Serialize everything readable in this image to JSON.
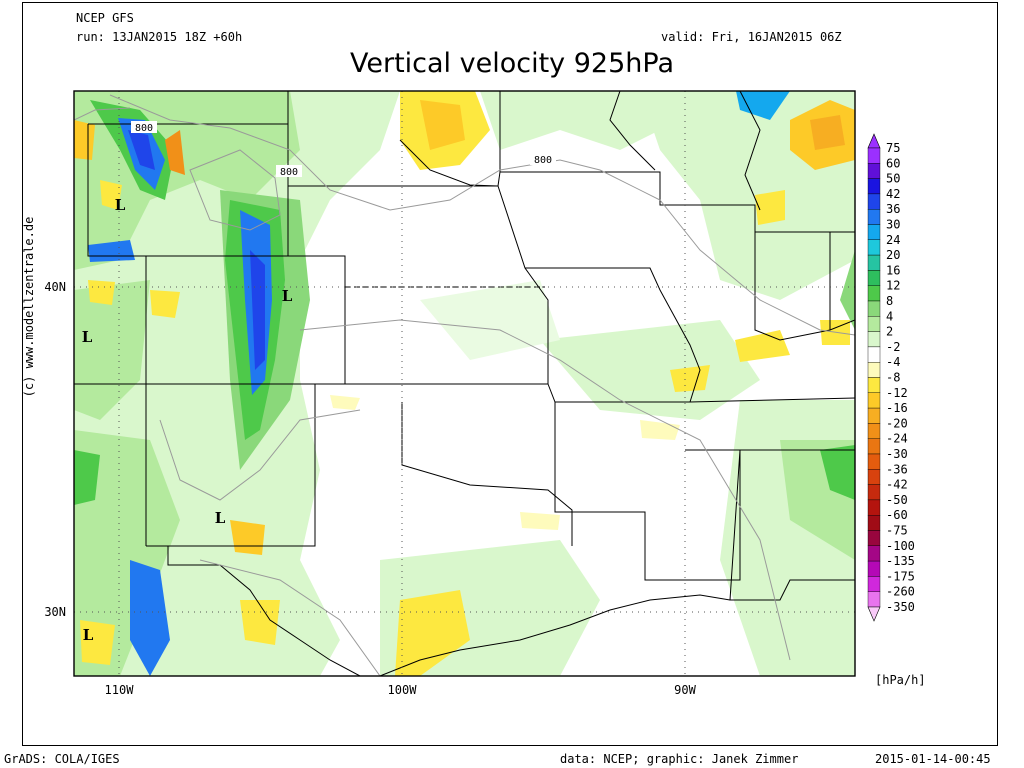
{
  "header": {
    "source": "NCEP GFS",
    "run": "run: 13JAN2015 18Z +60h",
    "valid": "valid: Fri, 16JAN2015 06Z",
    "title": "Vertical velocity 925hPa"
  },
  "credit": "(c) www.modellzentrale.de",
  "footer": {
    "left": "GrADS: COLA/IGES",
    "center": "data: NCEP; graphic: Janek Zimmer",
    "right": "2015-01-14-00:45"
  },
  "axes": {
    "lat_labels": [
      "40N",
      "30N"
    ],
    "lon_labels": [
      "110W",
      "100W",
      "90W"
    ]
  },
  "contours": {
    "label_a": "800",
    "label_b": "800",
    "label_c": "800"
  },
  "low_markers": [
    "L",
    "L",
    "L",
    "L",
    "L"
  ],
  "legend": {
    "unit": "[hPa/h]",
    "levels": [
      "75",
      "60",
      "50",
      "42",
      "36",
      "30",
      "24",
      "20",
      "16",
      "12",
      "8",
      "4",
      "2",
      "-2",
      "-4",
      "-8",
      "-12",
      "-16",
      "-20",
      "-24",
      "-30",
      "-36",
      "-42",
      "-50",
      "-60",
      "-75",
      "-100",
      "-135",
      "-175",
      "-260",
      "-350"
    ],
    "colors": [
      "#9b30ff",
      "#6010d8",
      "#1a14e0",
      "#1f45ea",
      "#2178f0",
      "#14a8ee",
      "#1ec8dc",
      "#26c4a2",
      "#2ebe5e",
      "#4ec94a",
      "#8ad87a",
      "#b4ea9e",
      "#d9f7cc",
      "#ffffff",
      "#fefbbc",
      "#fde840",
      "#fdca28",
      "#f7ae22",
      "#f19018",
      "#ea7612",
      "#e45c0e",
      "#d8420e",
      "#c62a0e",
      "#b4140e",
      "#a00c16",
      "#98063e",
      "#a40686",
      "#b408b6",
      "#d028dc",
      "#e874ee",
      "#f8caf8"
    ]
  },
  "colors": {
    "weak_ascent": "#b4ea9e",
    "moderate_ascent": "#4ec94a",
    "strong_ascent": "#1f45ea",
    "weak_descent": "#fde840",
    "moderate_descent": "#fdca28"
  }
}
